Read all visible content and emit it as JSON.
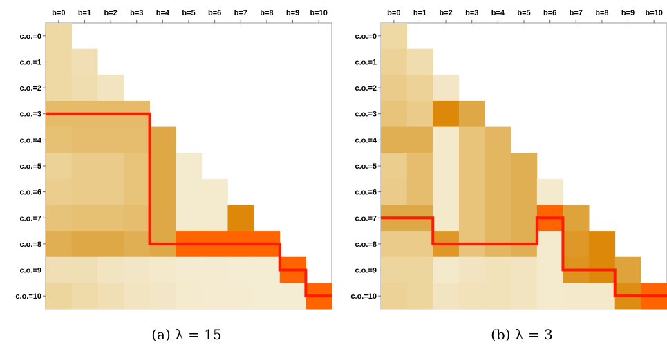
{
  "chart_data": [
    {
      "type": "heatmap",
      "caption": "(a) λ = 15",
      "col_labels": [
        "b=0",
        "b=1",
        "b=2",
        "b=3",
        "b=4",
        "b=5",
        "b=6",
        "b=7",
        "b=8",
        "b=9",
        "b=10"
      ],
      "row_labels": [
        "c.o.=0",
        "c.o.=1",
        "c.o.=2",
        "c.o.=3",
        "c.o.=4",
        "c.o.=5",
        "c.o.=6",
        "c.o.=7",
        "c.o.=8",
        "c.o.=9",
        "c.o.=10"
      ],
      "values": [
        [
          0.2
        ],
        [
          0.2,
          0.14
        ],
        [
          0.2,
          0.16,
          0.1
        ],
        [
          0.42,
          0.42,
          0.42,
          0.42
        ],
        [
          0.38,
          0.4,
          0.4,
          0.4,
          0.55
        ],
        [
          0.25,
          0.3,
          0.3,
          0.35,
          0.55,
          0.05
        ],
        [
          0.28,
          0.3,
          0.3,
          0.35,
          0.55,
          0.05,
          0.05
        ],
        [
          0.36,
          0.38,
          0.38,
          0.4,
          0.55,
          0.05,
          0.05,
          0.85
        ],
        [
          0.5,
          0.55,
          0.55,
          0.5,
          0.55,
          1.0,
          1.0,
          1.0,
          1.0
        ],
        [
          0.14,
          0.14,
          0.1,
          0.08,
          0.06,
          0.04,
          0.04,
          0.03,
          0.03,
          1.0
        ],
        [
          0.22,
          0.18,
          0.14,
          0.1,
          0.08,
          0.05,
          0.04,
          0.04,
          0.03,
          0.03,
          1.0
        ]
      ],
      "path": [
        [
          0,
          3
        ],
        [
          4,
          3
        ],
        [
          4,
          8
        ],
        [
          9,
          8
        ],
        [
          9,
          9
        ],
        [
          10,
          9
        ],
        [
          10,
          10
        ],
        [
          11,
          10
        ]
      ],
      "colors": {
        "line": "#ff1a00"
      }
    },
    {
      "type": "heatmap",
      "caption": "(b) λ = 3",
      "col_labels": [
        "b=0",
        "b=1",
        "b=2",
        "b=3",
        "b=4",
        "b=5",
        "b=6",
        "b=7",
        "b=8",
        "b=9",
        "b=10"
      ],
      "row_labels": [
        "c.o.=0",
        "c.o.=1",
        "c.o.=2",
        "c.o.=3",
        "c.o.=4",
        "c.o.=5",
        "c.o.=6",
        "c.o.=7",
        "c.o.=8",
        "c.o.=9",
        "c.o.=10"
      ],
      "values": [
        [
          0.2
        ],
        [
          0.25,
          0.16
        ],
        [
          0.3,
          0.25,
          0.08
        ],
        [
          0.35,
          0.3,
          0.85,
          0.55
        ],
        [
          0.5,
          0.5,
          0.06,
          0.35,
          0.45
        ],
        [
          0.28,
          0.4,
          0.06,
          0.35,
          0.45,
          0.5
        ],
        [
          0.3,
          0.4,
          0.06,
          0.35,
          0.45,
          0.5,
          0.05
        ],
        [
          0.55,
          0.55,
          0.06,
          0.35,
          0.45,
          0.5,
          1.0,
          0.6
        ],
        [
          0.3,
          0.3,
          0.7,
          0.35,
          0.45,
          0.5,
          0.05,
          0.7,
          0.85
        ],
        [
          0.22,
          0.22,
          0.06,
          0.1,
          0.12,
          0.1,
          0.05,
          0.75,
          0.85,
          0.6
        ],
        [
          0.25,
          0.22,
          0.1,
          0.12,
          0.12,
          0.1,
          0.05,
          0.06,
          0.06,
          0.8,
          1.0
        ]
      ],
      "path": [
        [
          0,
          7
        ],
        [
          2,
          7
        ],
        [
          2,
          8
        ],
        [
          6,
          8
        ],
        [
          6,
          7
        ],
        [
          7,
          7
        ],
        [
          7,
          9
        ],
        [
          9,
          9
        ],
        [
          9,
          10
        ],
        [
          11,
          10
        ]
      ],
      "colors": {
        "line": "#ff1a00"
      }
    }
  ]
}
